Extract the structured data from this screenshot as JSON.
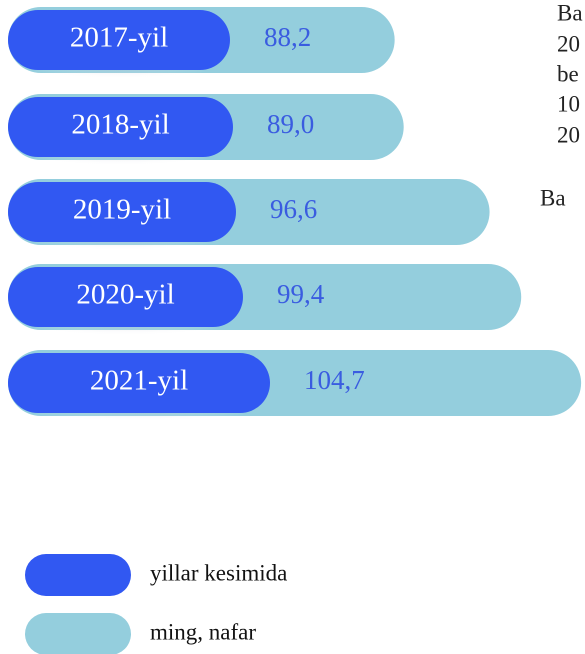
{
  "chart_data": {
    "type": "bar",
    "categories": [
      "2017-yil",
      "2018-yil",
      "2019-yil",
      "2020-yil",
      "2021-yil"
    ],
    "values": [
      88.2,
      89.0,
      96.6,
      99.4,
      104.7
    ],
    "value_labels": [
      "88,2",
      "89,0",
      "96,6",
      "99,4",
      "104,7"
    ],
    "series_colors": {
      "category": "#3158f2",
      "value": "#94cedd"
    },
    "legend": [
      {
        "name": "yillar kesimida",
        "color": "#3158f2"
      },
      {
        "name": "ming, nafar",
        "color": "#94cedd"
      }
    ],
    "side_text": [
      "Ba",
      "20",
      "be",
      "10",
      "20",
      "Ba"
    ]
  }
}
